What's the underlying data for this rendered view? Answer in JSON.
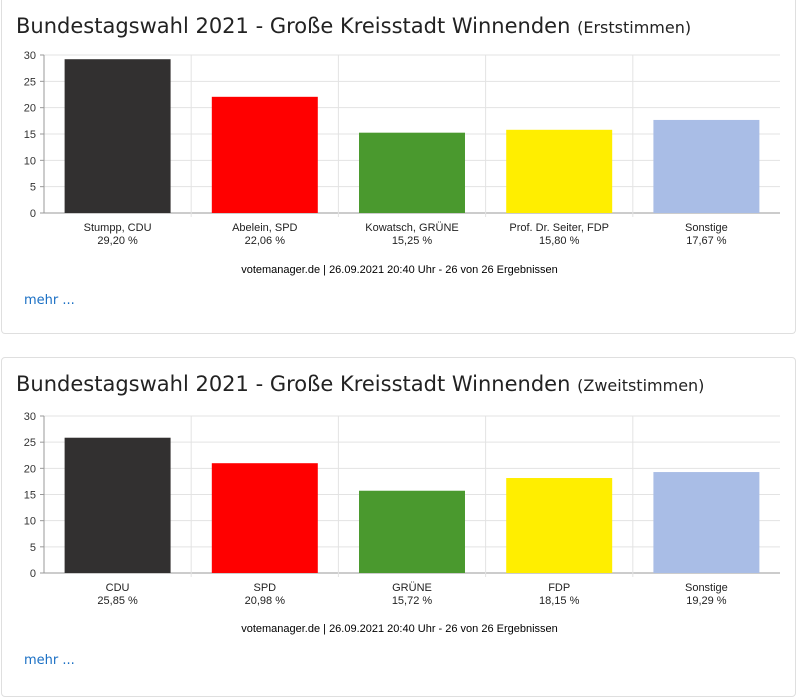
{
  "panels": [
    {
      "title": "Bundestagswahl 2021 - Große Kreisstadt Winnenden",
      "subtitle": "(Erststimmen)",
      "source": "votemanager.de | 26.09.2021 20:40 Uhr - 26 von 26 Ergebnissen",
      "more_label": "mehr ...",
      "chart_data": {
        "type": "bar",
        "categories": [
          "Stumpp, CDU",
          "Abelein, SPD",
          "Kowatsch, GRÜNE",
          "Prof. Dr. Seiter, FDP",
          "Sonstige"
        ],
        "values": [
          29.2,
          22.06,
          15.25,
          15.8,
          17.67
        ],
        "value_labels": [
          "29,20 %",
          "22,06 %",
          "15,25 %",
          "15,80 %",
          "17,67 %"
        ],
        "colors": [
          "#323030",
          "#ff0000",
          "#4a992e",
          "#ffee00",
          "#a9bde6"
        ],
        "yticks": [
          "0",
          "5",
          "10",
          "15",
          "20",
          "25",
          "30"
        ],
        "ylim": [
          0,
          30
        ],
        "grid": true
      }
    },
    {
      "title": "Bundestagswahl 2021 - Große Kreisstadt Winnenden",
      "subtitle": "(Zweitstimmen)",
      "source": "votemanager.de | 26.09.2021 20:40 Uhr - 26 von 26 Ergebnissen",
      "more_label": "mehr ...",
      "chart_data": {
        "type": "bar",
        "categories": [
          "CDU",
          "SPD",
          "GRÜNE",
          "FDP",
          "Sonstige"
        ],
        "values": [
          25.85,
          20.98,
          15.72,
          18.15,
          19.29
        ],
        "value_labels": [
          "25,85 %",
          "20,98 %",
          "15,72 %",
          "18,15 %",
          "19,29 %"
        ],
        "colors": [
          "#323030",
          "#ff0000",
          "#4a992e",
          "#ffee00",
          "#a9bde6"
        ],
        "yticks": [
          "0",
          "5",
          "10",
          "15",
          "20",
          "25",
          "30"
        ],
        "ylim": [
          0,
          30
        ],
        "grid": true
      }
    }
  ]
}
